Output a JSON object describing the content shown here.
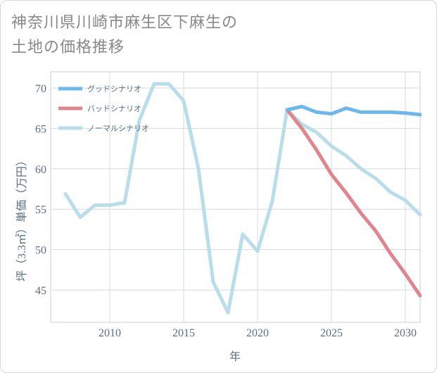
{
  "chart_data": {
    "type": "line",
    "title": "神奈川県川崎市麻生区下麻生の土地の価格推移",
    "title_lines": [
      "神奈川県川崎市麻生区下麻生の",
      "土地の価格推移"
    ],
    "xlabel": "年",
    "ylabel": "坪（3.3㎡）単価（万円）",
    "xlim": [
      2006,
      2031
    ],
    "ylim": [
      41,
      72
    ],
    "xticks": [
      "2010",
      "2015",
      "2020",
      "2025",
      "2030"
    ],
    "yticks": [
      "45",
      "50",
      "55",
      "60",
      "65",
      "70"
    ],
    "grid": true,
    "legend_position": "top-left",
    "series": [
      {
        "name": "グッドシナリオ",
        "color": "#6cb8ee",
        "x": [
          2022,
          2023,
          2024,
          2025,
          2026,
          2027,
          2028,
          2029,
          2030,
          2031
        ],
        "y": [
          67.3,
          67.7,
          67.0,
          66.8,
          67.5,
          67.0,
          67.0,
          67.0,
          66.9,
          66.7
        ]
      },
      {
        "name": "バッドシナリオ",
        "color": "#e0858e",
        "x": [
          2022,
          2023,
          2024,
          2025,
          2026,
          2027,
          2028,
          2029,
          2030,
          2031
        ],
        "y": [
          67.3,
          65.0,
          62.3,
          59.3,
          57.0,
          54.5,
          52.3,
          49.5,
          47.0,
          44.3
        ]
      },
      {
        "name": "ノーマルシナリオ",
        "color": "#b9dde9",
        "x": [
          2007,
          2008,
          2009,
          2010,
          2011,
          2012,
          2013,
          2014,
          2015,
          2016,
          2017,
          2018,
          2019,
          2020,
          2021,
          2022,
          2023,
          2024,
          2025,
          2026,
          2027,
          2028,
          2029,
          2030,
          2031
        ],
        "y": [
          56.9,
          54.0,
          55.5,
          55.5,
          55.8,
          66.0,
          70.5,
          70.5,
          68.4,
          60.0,
          46.0,
          42.2,
          51.9,
          49.8,
          56.0,
          67.3,
          65.5,
          64.5,
          62.8,
          61.6,
          60.0,
          58.8,
          57.1,
          56.1,
          54.3
        ]
      }
    ]
  }
}
